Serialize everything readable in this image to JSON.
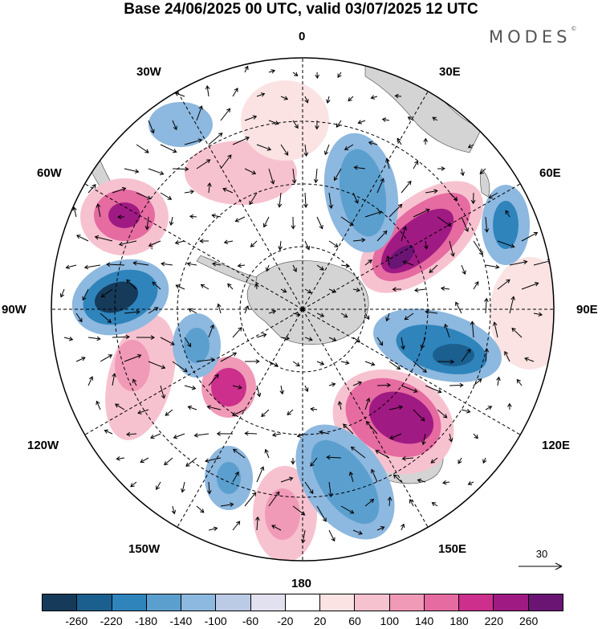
{
  "title": "Base 24/06/2025 00 UTC, valid 03/07/2025 12 UTC",
  "brand": "MODES",
  "brand_mark": "©",
  "longitude_labels": {
    "lon_0": "0",
    "lon_30e": "30E",
    "lon_60e": "60E",
    "lon_90e": "90E",
    "lon_120e": "120E",
    "lon_150e": "150E",
    "lon_180": "180",
    "lon_150w": "150W",
    "lon_120w": "120W",
    "lon_90w": "90W",
    "lon_60w": "60W",
    "lon_30w": "30W"
  },
  "reference_vector": {
    "label": "30"
  },
  "colorbar": {
    "colors": [
      "#163a5a",
      "#1b5f8f",
      "#2f84bc",
      "#5b9fce",
      "#8db8df",
      "#bccbe5",
      "#e2e1ef",
      "#ffffff",
      "#fbe3e3",
      "#f7c2cf",
      "#f09ab7",
      "#e56ba1",
      "#cc2f8c",
      "#a01a83",
      "#6a1474"
    ],
    "labels": [
      "-260",
      "-220",
      "-180",
      "-140",
      "-100",
      "-60",
      "-20",
      "20",
      "60",
      "100",
      "140",
      "180",
      "220",
      "260"
    ]
  },
  "colors": {
    "land": "#d4d4d4",
    "ocean": "#ffffff",
    "frame": "#000000"
  }
}
